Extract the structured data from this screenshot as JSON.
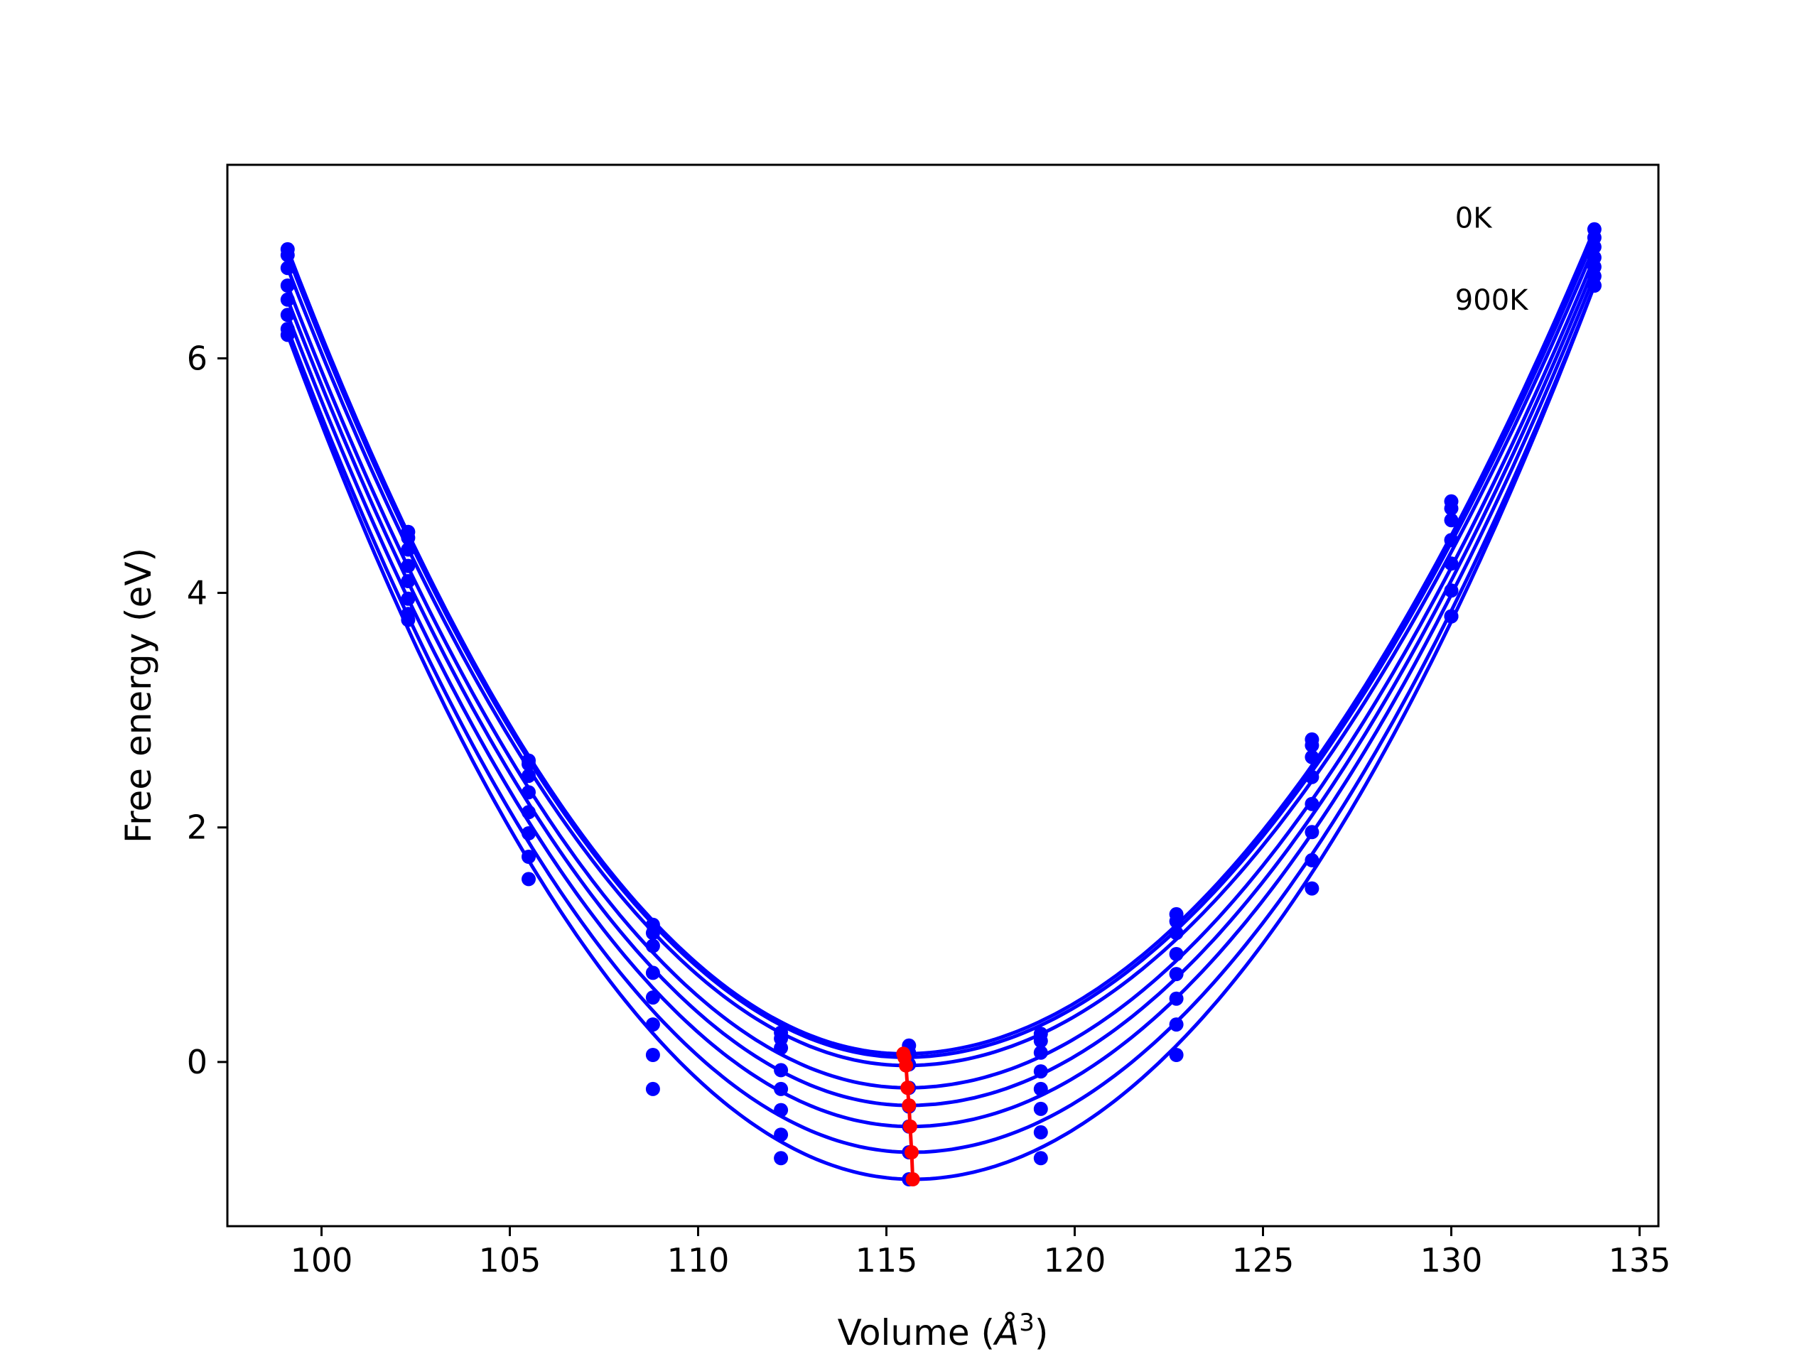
{
  "chart_data": {
    "type": "line",
    "title": "",
    "xlabel": "Volume (",
    "xlabel_symbol": "Å",
    "xlabel_exp": "3",
    "xlabel_close": ")",
    "ylabel": "Free energy (eV)",
    "xlim": [
      97.5,
      135.5
    ],
    "ylim": [
      -1.4,
      7.65
    ],
    "xticks": [
      100,
      105,
      110,
      115,
      120,
      125,
      130,
      135
    ],
    "yticks": [
      0,
      2,
      4,
      6
    ],
    "grid": false,
    "legend": "none",
    "annotations": [
      {
        "text": "0K",
        "x": 130.1,
        "y": 7.2
      },
      {
        "text": "900K",
        "x": 130.1,
        "y": 6.5
      }
    ],
    "volumes": [
      99.1,
      102.3,
      105.5,
      108.8,
      112.2,
      115.6,
      119.1,
      122.7,
      126.3,
      130.0,
      133.8
    ],
    "curve_color": "#0000ff",
    "point_color": "#0000ff",
    "min_color": "#ff0000",
    "series": [
      {
        "min_volume": 115.45,
        "min_energy": 0.07,
        "points": [
          6.93,
          4.52,
          2.57,
          1.17,
          0.25,
          0.14,
          0.24,
          1.26,
          2.75,
          4.78,
          7.1
        ]
      },
      {
        "min_volume": 115.48,
        "min_energy": 0.04,
        "points": [
          6.88,
          4.47,
          2.54,
          1.1,
          0.2,
          0.08,
          0.18,
          1.2,
          2.7,
          4.72,
          7.03
        ]
      },
      {
        "min_volume": 115.52,
        "min_energy": -0.03,
        "points": [
          6.77,
          4.37,
          2.44,
          0.99,
          0.12,
          -0.02,
          0.08,
          1.1,
          2.6,
          4.62,
          6.95
        ]
      },
      {
        "min_volume": 115.56,
        "min_energy": -0.22,
        "points": [
          6.62,
          4.23,
          2.3,
          0.76,
          -0.07,
          -0.22,
          -0.08,
          0.92,
          2.43,
          4.45,
          6.86
        ]
      },
      {
        "min_volume": 115.6,
        "min_energy": -0.37,
        "points": [
          6.5,
          4.1,
          2.13,
          0.55,
          -0.23,
          -0.38,
          -0.23,
          0.75,
          2.2,
          4.25,
          6.78
        ]
      },
      {
        "min_volume": 115.63,
        "min_energy": -0.55,
        "points": [
          6.37,
          3.95,
          1.95,
          0.32,
          -0.41,
          -0.55,
          -0.4,
          0.54,
          1.96,
          4.02,
          6.7
        ]
      },
      {
        "min_volume": 115.67,
        "min_energy": -0.77,
        "points": [
          6.25,
          3.82,
          1.75,
          0.06,
          -0.62,
          -0.77,
          -0.6,
          0.32,
          1.72,
          3.8,
          6.62
        ]
      },
      {
        "min_volume": 115.7,
        "min_energy": -1.0,
        "points": [
          6.2,
          3.77,
          1.56,
          -0.23,
          -0.82,
          -1.0,
          -0.82,
          0.06,
          1.48,
          3.8,
          6.62
        ]
      }
    ]
  }
}
